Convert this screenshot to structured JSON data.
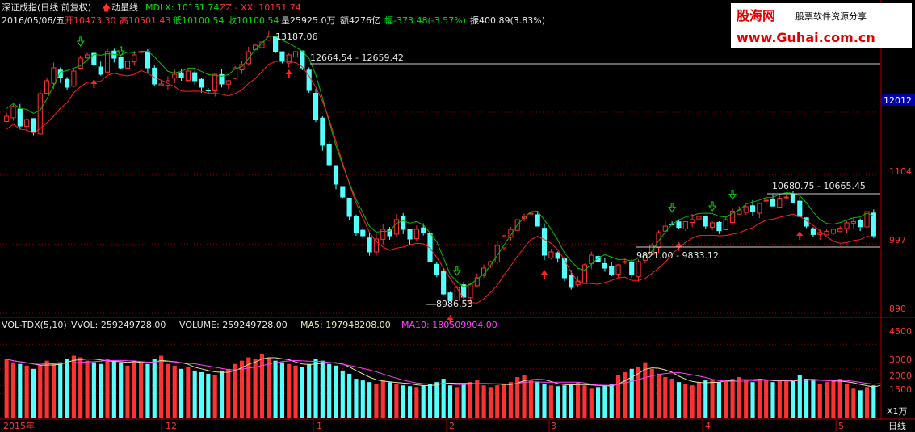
{
  "header": {
    "index_name": "深证成指(日线 前复权)",
    "indicator_name": "动量线",
    "mdlx_label": "MDLX: 10151.74",
    "zz_label": "ZZ - XX: 10151.74"
  },
  "info_bar": {
    "date": "2016/05/06/五",
    "open": "开10473.30",
    "high": "高10501.43",
    "low": "低10100.54",
    "close": "收10100.54",
    "volume": "量25925.0万",
    "amount": "额4276亿",
    "change": "幅-373.48(-3.57%)",
    "amplitude": "振400.89(3.83%)"
  },
  "price_annotations": {
    "peak": "13187.06",
    "range_top": "12664.54 - 12659.42",
    "low": "8986.53",
    "range_mid": "9821.00 - 9833.12",
    "range_right": "10680.75 - 10665.45",
    "current_price": "12012.9"
  },
  "price_axis_labels": [
    "1104",
    "997",
    "890"
  ],
  "volume_header": {
    "name": "VOL-TDX(5,10)",
    "vvol": "VVOL: 259249728.00",
    "volume": "VOLUME: 259249728.00",
    "ma5": "MA5: 197948208.00",
    "ma10": "MA10: 180509904.00"
  },
  "volume_axis_labels": [
    "4500",
    "3000",
    "2000",
    "1500"
  ],
  "volume_unit": "X1万",
  "time_axis": {
    "labels": [
      "2015年",
      "12",
      "1",
      "2",
      "3",
      "4",
      "5"
    ],
    "period_label": "日线"
  },
  "watermark": {
    "brand": "股海网",
    "slogan": "股票软件资源分享",
    "url": "www.Guhai.com.cn"
  },
  "colors": {
    "up": "#ff3232",
    "down": "#54ffff",
    "mdlx": "#00c000",
    "zz": "#ff2020",
    "ma5": "#e0e0a0",
    "ma10": "#ff40ff",
    "grid": "#8b0000",
    "axis": "#b00000"
  },
  "chart_data": [
    {
      "type": "candlestick",
      "ylim": [
        8900,
        13300
      ],
      "y_ticks": [
        8900,
        9970,
        11040,
        12013
      ],
      "closes": [
        11950,
        12100,
        11800,
        11900,
        11700,
        12300,
        12500,
        12700,
        12550,
        12400,
        12650,
        12850,
        12900,
        12750,
        12600,
        12950,
        12850,
        12700,
        12800,
        12900,
        12950,
        12700,
        12450,
        12450,
        12500,
        12600,
        12550,
        12650,
        12500,
        12400,
        12350,
        12600,
        12450,
        12500,
        12700,
        12750,
        12950,
        13050,
        13100,
        13187,
        12950,
        12800,
        12900,
        12950,
        12700,
        12350,
        11900,
        11500,
        11200,
        10900,
        10700,
        10400,
        10150,
        10100,
        9850,
        10050,
        10200,
        10100,
        10350,
        10200,
        10050,
        10200,
        10150,
        9700,
        9500,
        9200,
        9100,
        9300,
        9150,
        9350,
        9450,
        9600,
        9700,
        9950,
        10100,
        10200,
        10350,
        10400,
        10450,
        10250,
        9800,
        9850,
        9750,
        9450,
        9300,
        9400,
        9650,
        9800,
        9700,
        9600,
        9500,
        9650,
        9700,
        9500,
        9700,
        9800,
        9950,
        10150,
        10250,
        10280,
        10230,
        10320,
        10350,
        10400,
        10250,
        10300,
        10180,
        10350,
        10480,
        10500,
        10550,
        10480,
        10600,
        10650,
        10560,
        10680,
        10700,
        10620,
        10400,
        10250,
        10120,
        10150,
        10170,
        10200,
        10220,
        10300,
        10320,
        10240,
        10474,
        10100
      ]
    },
    {
      "type": "bar",
      "ylim": [
        0,
        5200
      ],
      "volume_units": "万手",
      "values": [
        3600,
        3400,
        3300,
        3200,
        3000,
        3200,
        3500,
        3300,
        3400,
        3600,
        3800,
        3700,
        3500,
        3400,
        3300,
        3600,
        3500,
        3400,
        3200,
        3500,
        3400,
        3300,
        3600,
        3800,
        3300,
        3200,
        3000,
        3100,
        2900,
        2800,
        2700,
        2600,
        2900,
        3000,
        3300,
        3500,
        3700,
        3600,
        3900,
        3700,
        3500,
        3400,
        3300,
        3200,
        3100,
        3300,
        3600,
        3500,
        3300,
        3200,
        2900,
        2700,
        2400,
        2300,
        2200,
        2100,
        2300,
        2200,
        2100,
        2000,
        1950,
        1900,
        2000,
        2100,
        2200,
        2400,
        2000,
        1900,
        2100,
        2200,
        2300,
        2000,
        1900,
        2000,
        2100,
        2200,
        2500,
        2600,
        2300,
        2200,
        2100,
        2000,
        1950,
        2000,
        2100,
        2200,
        2000,
        1800,
        1900,
        2000,
        2100,
        2600,
        2800,
        3000,
        3100,
        3400,
        3000,
        2700,
        2500,
        2400,
        2200,
        2100,
        2000,
        2200,
        2300,
        2300,
        2200,
        2300,
        2400,
        2500,
        2300,
        2200,
        2400,
        2300,
        2200,
        2250,
        2250,
        2250,
        2600,
        2400,
        2300,
        2100,
        2200,
        2300,
        2400,
        2100,
        1800,
        1700,
        1900,
        2000,
        2600
      ]
    }
  ]
}
